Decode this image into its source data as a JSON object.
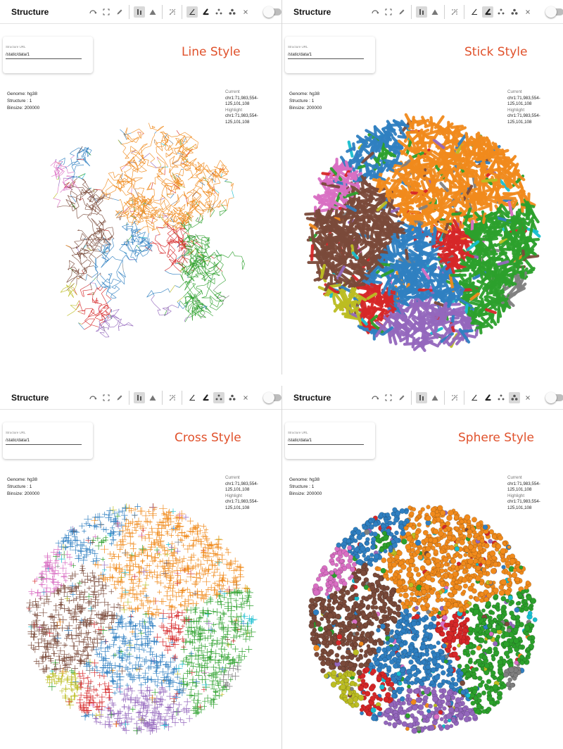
{
  "colors": {
    "accent_label": "#e0512b",
    "blue": "#2f7fc1",
    "orange": "#f08a1c",
    "green": "#2ca02c",
    "brown": "#7a4a3a",
    "pink": "#d96fc3",
    "red": "#d62728",
    "purple": "#9467bd",
    "gray": "#7f7f7f",
    "olive": "#bcbd22",
    "cyan": "#17becf"
  },
  "panels": [
    {
      "title": "Structure",
      "style_label": "Line Style",
      "style_mode": "line",
      "active_style_icon": 0,
      "url_label": "Structure URL",
      "url_value": "/static/data/1",
      "genome": "Genome: hg38",
      "structure": "Structure : 1",
      "binsize": "Binsize: 200000",
      "current_label": "Current",
      "current_value": "chr1:71,983,554-125,101,108",
      "highlight_label": "Highlight",
      "highlight_value": "chr1:71,983,554-125,101,108"
    },
    {
      "title": "Structure",
      "style_label": "Stick Style",
      "style_mode": "stick",
      "active_style_icon": 1,
      "url_label": "Structure URL",
      "url_value": "/static/data/1",
      "genome": "Genome: hg38",
      "structure": "Structure : 1",
      "binsize": "Binsize: 200000",
      "current_label": "Current",
      "current_value": "chr1:71,983,554-125,101,108",
      "highlight_label": "Highlight",
      "highlight_value": "chr1:71,983,554-125,101,108"
    },
    {
      "title": "Structure",
      "style_label": "Cross Style",
      "style_mode": "cross",
      "active_style_icon": 2,
      "url_label": "Structure URL",
      "url_value": "/static/data/1",
      "genome": "Genome: hg38",
      "structure": "Structure : 1",
      "binsize": "Binsize: 200000",
      "current_label": "Current",
      "current_value": "chr1:71,983,554-125,101,108",
      "highlight_label": "Highlight",
      "highlight_value": "chr1:71,983,554-125,101,108"
    },
    {
      "title": "Structure",
      "style_label": "Sphere Style",
      "style_mode": "sphere",
      "active_style_icon": 3,
      "url_label": "Structure URL",
      "url_value": "/static/data/1",
      "genome": "Genome: hg38",
      "structure": "Structure : 1",
      "binsize": "Binsize: 200000",
      "current_label": "Current",
      "current_value": "chr1:71,983,554-125,101,108",
      "highlight_label": "Highlight",
      "highlight_value": "chr1:71,983,554-125,101,108"
    }
  ],
  "toolbar_icons": {
    "view_group": [
      "rotate-icon",
      "fit-view-icon",
      "pencil-icon"
    ],
    "mode_group": [
      "bar-mode-icon",
      "mountain-mode-icon"
    ],
    "extra_group": [
      "pattern-icon"
    ],
    "style_group": [
      "line-style-icon",
      "stick-style-icon",
      "cross-style-icon",
      "sphere-style-icon",
      "close-icon"
    ]
  }
}
